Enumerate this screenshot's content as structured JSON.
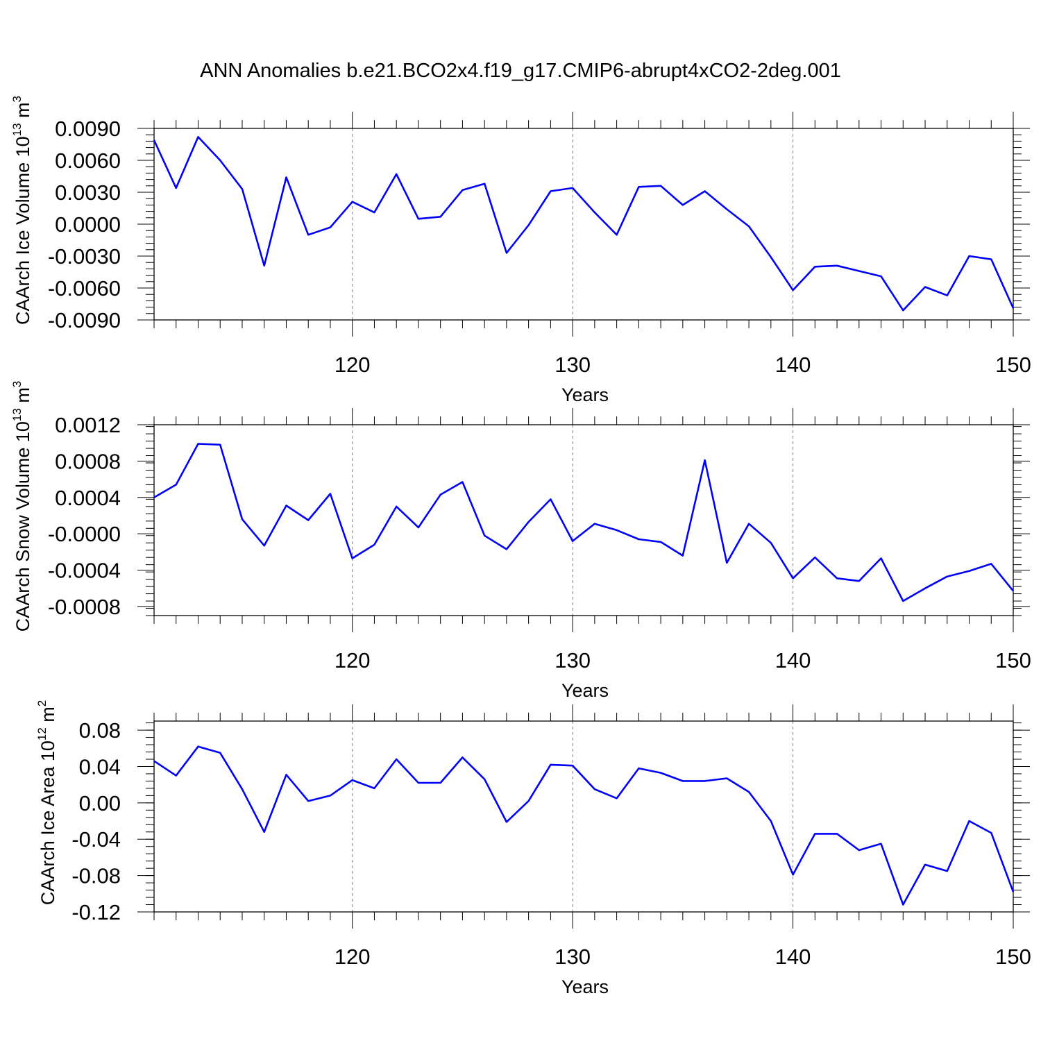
{
  "title": "ANN Anomalies b.e21.BCO2x4.f19_g17.CMIP6-abrupt4xCO2-2deg.001",
  "colors": {
    "line": "#0000ff",
    "axis": "#000000",
    "grid": "#808080"
  },
  "chart_data": [
    {
      "type": "line",
      "ylabel": "CAArch Ice Volume 10",
      "ylabel_sup": "13",
      "ylabel_unit": "m",
      "ylabel_unit_sup": "3",
      "xlabel": "Years",
      "xlim": [
        111,
        150
      ],
      "ylim": [
        -0.009,
        0.009
      ],
      "yticks": [
        -0.009,
        -0.006,
        -0.003,
        0.0,
        0.003,
        0.006,
        0.009
      ],
      "ytick_labels": [
        "-0.0090",
        "-0.0060",
        "-0.0030",
        "0.0000",
        "0.0030",
        "0.0060",
        "0.0090"
      ],
      "xticks": [
        120,
        130,
        140,
        150
      ],
      "xtick_labels": [
        "120",
        "130",
        "140",
        "150"
      ],
      "grid": "vertical-dashed",
      "x": [
        111,
        112,
        113,
        114,
        115,
        116,
        117,
        118,
        119,
        120,
        121,
        122,
        123,
        124,
        125,
        126,
        127,
        128,
        129,
        130,
        131,
        132,
        133,
        134,
        135,
        136,
        137,
        138,
        139,
        140,
        141,
        142,
        143,
        144,
        145,
        146,
        147,
        148,
        149,
        150
      ],
      "y": [
        0.0079,
        0.0034,
        0.0082,
        0.006,
        0.0033,
        -0.0039,
        0.0044,
        -0.001,
        -0.0003,
        0.0021,
        0.0011,
        0.0047,
        0.0005,
        0.0007,
        0.0032,
        0.0038,
        -0.0027,
        -0.0001,
        0.0031,
        0.0034,
        0.0011,
        -0.001,
        0.0035,
        0.0036,
        0.0018,
        0.0031,
        0.0014,
        -0.0002,
        -0.0031,
        -0.0062,
        -0.004,
        -0.0039,
        -0.0044,
        -0.0049,
        -0.0081,
        -0.0059,
        -0.0067,
        -0.003,
        -0.0033,
        -0.0079
      ]
    },
    {
      "type": "line",
      "ylabel": "CAArch Snow Volume 10",
      "ylabel_sup": "13",
      "ylabel_unit": "m",
      "ylabel_unit_sup": "3",
      "xlabel": "Years",
      "xlim": [
        111,
        150
      ],
      "ylim": [
        -0.0009,
        0.0012
      ],
      "yticks": [
        -0.0008,
        -0.0004,
        0.0,
        0.0004,
        0.0008,
        0.0012
      ],
      "ytick_labels": [
        "-0.0008",
        "-0.0004",
        "-0.0000",
        "0.0004",
        "0.0008",
        "0.0012"
      ],
      "xticks": [
        120,
        130,
        140,
        150
      ],
      "xtick_labels": [
        "120",
        "130",
        "140",
        "150"
      ],
      "grid": "vertical-dashed",
      "x": [
        111,
        112,
        113,
        114,
        115,
        116,
        117,
        118,
        119,
        120,
        121,
        122,
        123,
        124,
        125,
        126,
        127,
        128,
        129,
        130,
        131,
        132,
        133,
        134,
        135,
        136,
        137,
        138,
        139,
        140,
        141,
        142,
        143,
        144,
        145,
        146,
        147,
        148,
        149,
        150
      ],
      "y": [
        0.0004,
        0.00054,
        0.00099,
        0.00098,
        0.00016,
        -0.00013,
        0.00031,
        0.00015,
        0.00044,
        -0.00027,
        -0.00012,
        0.0003,
        7e-05,
        0.00043,
        0.00057,
        -2e-05,
        -0.00017,
        0.00013,
        0.00038,
        -8e-05,
        0.00011,
        4e-05,
        -6e-05,
        -9e-05,
        -0.00024,
        0.00081,
        -0.00032,
        0.00011,
        -0.0001,
        -0.00049,
        -0.00026,
        -0.00049,
        -0.00052,
        -0.00027,
        -0.00074,
        -0.0006,
        -0.00047,
        -0.00041,
        -0.00033,
        -0.00063
      ]
    },
    {
      "type": "line",
      "ylabel": "CAArch Ice Area 10",
      "ylabel_sup": "12",
      "ylabel_unit": "m",
      "ylabel_unit_sup": "2",
      "xlabel": "Years",
      "xlim": [
        111,
        150
      ],
      "ylim": [
        -0.12,
        0.09
      ],
      "yticks": [
        -0.12,
        -0.08,
        -0.04,
        0.0,
        0.04,
        0.08
      ],
      "ytick_labels": [
        "-0.12",
        "-0.08",
        "-0.04",
        "0.00",
        "0.04",
        "0.08"
      ],
      "xticks": [
        120,
        130,
        140,
        150
      ],
      "xtick_labels": [
        "120",
        "130",
        "140",
        "150"
      ],
      "grid": "vertical-dashed",
      "x": [
        111,
        112,
        113,
        114,
        115,
        116,
        117,
        118,
        119,
        120,
        121,
        122,
        123,
        124,
        125,
        126,
        127,
        128,
        129,
        130,
        131,
        132,
        133,
        134,
        135,
        136,
        137,
        138,
        139,
        140,
        141,
        142,
        143,
        144,
        145,
        146,
        147,
        148,
        149,
        150
      ],
      "y": [
        0.046,
        0.03,
        0.062,
        0.055,
        0.015,
        -0.032,
        0.031,
        0.002,
        0.008,
        0.025,
        0.016,
        0.048,
        0.022,
        0.022,
        0.05,
        0.026,
        -0.021,
        0.002,
        0.042,
        0.041,
        0.015,
        0.005,
        0.038,
        0.033,
        0.024,
        0.024,
        0.027,
        0.012,
        -0.02,
        -0.079,
        -0.034,
        -0.034,
        -0.052,
        -0.045,
        -0.112,
        -0.068,
        -0.075,
        -0.02,
        -0.033,
        -0.098
      ]
    }
  ]
}
